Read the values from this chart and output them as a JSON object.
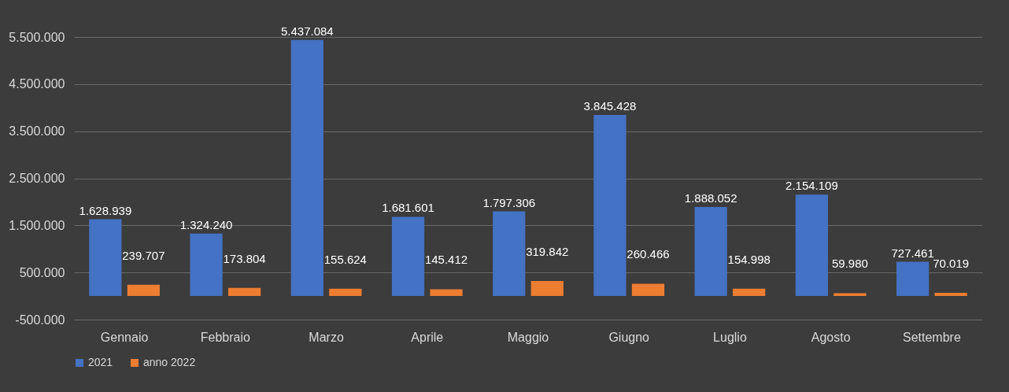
{
  "chart_data": {
    "type": "bar",
    "categories": [
      "Gennaio",
      "Febbraio",
      "Marzo",
      "Aprile",
      "Maggio",
      "Giugno",
      "Luglio",
      "Agosto",
      "Settembre"
    ],
    "series": [
      {
        "name": "2021",
        "color": "#4472c4",
        "values": [
          1628939,
          1324240,
          5437084,
          1681601,
          1797306,
          3845428,
          1888052,
          2154109,
          727461
        ],
        "value_labels": [
          "1.628.939",
          "1.324.240",
          "5.437.084",
          "1.681.601",
          "1.797.306",
          "3.845.428",
          "1.888.052",
          "2.154.109",
          "727.461"
        ]
      },
      {
        "name": "anno 2022",
        "color": "#ed7d31",
        "values": [
          239707,
          173804,
          155624,
          145412,
          319842,
          260466,
          154998,
          59980,
          70019
        ],
        "value_labels": [
          "239.707",
          "173.804",
          "155.624",
          "145.412",
          "319.842",
          "260.466",
          "154.998",
          "59.980",
          "70.019"
        ]
      }
    ],
    "ylim": [
      -500000,
      5500000
    ],
    "yticks": [
      {
        "value": -500000,
        "label": "-500.000"
      },
      {
        "value": 500000,
        "label": "500.000"
      },
      {
        "value": 1500000,
        "label": "1.500.000"
      },
      {
        "value": 2500000,
        "label": "2.500.000"
      },
      {
        "value": 3500000,
        "label": "3.500.000"
      },
      {
        "value": 4500000,
        "label": "4.500.000"
      },
      {
        "value": 5500000,
        "label": "5.500.000"
      }
    ],
    "grid": "y",
    "legend": "bottom"
  }
}
